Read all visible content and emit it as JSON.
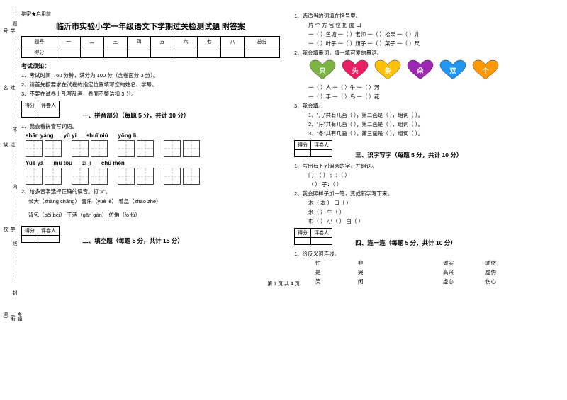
{
  "header_note": "绝密★启用前",
  "title": "临沂市实验小学一年级语文下学期过关检测试题 附答案",
  "score_table": {
    "headers": [
      "题号",
      "一",
      "二",
      "三",
      "四",
      "五",
      "六",
      "七",
      "八",
      "总分"
    ],
    "row_label": "得分"
  },
  "exam_notice_title": "考试须知：",
  "exam_notices": [
    "1、考试时间：60 分钟，满分为 100 分（含卷面分 3 分）。",
    "2、请首先按要求在试卷的指定位置填写您的姓名、学号。",
    "3、不要在试卷上乱写乱画，卷面不整洁扣 3 分。"
  ],
  "score_box_headers": [
    "得分",
    "评卷人"
  ],
  "sections": {
    "s1": "一、拼音部分（每题 5 分，共计 10 分）",
    "s2": "二、填空题（每题 5 分，共计 15 分）",
    "s3": "三、识字写字（每题 5 分，共计 10 分）",
    "s4": "四、连一连（每题 5 分，共计 10 分）"
  },
  "pinyin": {
    "q1": "1、我会看拼音写词语。",
    "row1": [
      "shān yáng",
      "yǔ  yi",
      "shuǐ niú",
      "yǒng  lì"
    ],
    "row2": [
      "Yuè  yá",
      "mù tou",
      "zì jì",
      "chū  mén"
    ]
  },
  "q2_multichar": {
    "title": "2、给多音字选择正确的读音。打\"√\"。",
    "items": [
      "长大（zhǎng  cháng）    音乐（yuè   lè）    着急（zhāo   zhé）",
      "背包（bēi   bèi）             干活（gān   gàn）       仿佛（fó  fú）"
    ]
  },
  "fill": {
    "q1_title": "1、选适当的词填在括号里。",
    "q1_words": "片    个    方    包    位    把    面    口",
    "q1_lines": [
      "一（    ）鱼塘    一（    ）老师    一（    ）松果    一（    ）井",
      "一（    ）叶子    一（    ）旗子    一（    ）菜子    一（    ）尺"
    ],
    "q2_title": "2、我会填量词，填一填可爱的量词。",
    "q2_lines": [
      "一（    ）人         一（    ）牛         一（    ）河",
      "一（    ）手         一（    ）鸟         一（    ）花"
    ],
    "q3_title": "3、我会填。",
    "q3_lines": [
      "1、\"儿\"共有几画（     ），第二画是（     ），组词（     ）。",
      "2、\"牙\"共有几画（     ），第二画是（     ），组词（     ）。",
      "3、\"冬\"共有几画（     ），第三画是（     ），组词（     ）。"
    ]
  },
  "hearts": [
    {
      "label": "只",
      "color": "#7cb342"
    },
    {
      "label": "头",
      "color": "#e91e63"
    },
    {
      "label": "条",
      "color": "#ffc107"
    },
    {
      "label": "朵",
      "color": "#9c27b0"
    },
    {
      "label": "双",
      "color": "#2196f3"
    },
    {
      "label": "个",
      "color": "#ff9800"
    }
  ],
  "shizi": {
    "q1_title": "1、写出有下列偏旁的字，并组词。",
    "q1_lines": [
      "门：（     ）               氵：（     ）",
      "（     ）                  子：（     ）"
    ],
    "q2_title": "2、我会照样子加一笔，变成新字写下来。",
    "q2_lines": [
      "木（    本    ）         口（          ）",
      "米（          ）         牛（          ）",
      "巾（          ）         小（          ）         白（          ）"
    ]
  },
  "lianyi": {
    "q1_title": "1、给反义词连线。",
    "rows": [
      [
        "忙",
        "非",
        "",
        "诚实",
        "骄傲"
      ],
      [
        "是",
        "哭",
        "",
        "高兴",
        "虚伪"
      ],
      [
        "笑",
        "闲",
        "",
        "虚心",
        "伤心"
      ]
    ]
  },
  "side_labels": [
    "学号",
    "姓名",
    "班级",
    "学校",
    "乡镇（街道）"
  ],
  "vertical_annotations": [
    "题",
    "不",
    "内",
    "线",
    "封"
  ],
  "footer": "第 1 页 共 4 页"
}
